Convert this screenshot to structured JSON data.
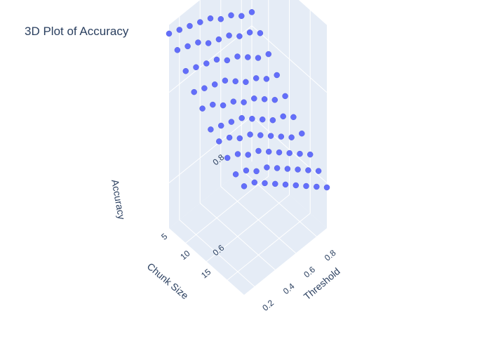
{
  "chart_data": {
    "type": "scatter",
    "title": "3D Plot of Accuracy",
    "x_axis": {
      "label": "Threshold",
      "range": [
        0.1,
        0.9
      ],
      "ticks": [
        "0.2",
        "0.4",
        "0.6",
        "0.8"
      ]
    },
    "y_axis": {
      "label": "Chunk Size",
      "range": [
        1,
        19
      ],
      "ticks": [
        "5",
        "10",
        "15"
      ]
    },
    "z_axis": {
      "label": "Accuracy",
      "range": [
        0.5,
        0.95
      ],
      "ticks": [
        "0.6",
        "0.8"
      ]
    },
    "grid": true,
    "marker_color": "#636efa",
    "points": [
      {
        "x": 0.1,
        "y": 1,
        "z": 0.93
      },
      {
        "x": 0.1,
        "y": 3,
        "z": 0.91
      },
      {
        "x": 0.1,
        "y": 5,
        "z": 0.88
      },
      {
        "x": 0.1,
        "y": 7,
        "z": 0.85
      },
      {
        "x": 0.1,
        "y": 9,
        "z": 0.83
      },
      {
        "x": 0.1,
        "y": 11,
        "z": 0.8
      },
      {
        "x": 0.1,
        "y": 13,
        "z": 0.79
      },
      {
        "x": 0.1,
        "y": 15,
        "z": 0.77
      },
      {
        "x": 0.1,
        "y": 17,
        "z": 0.75
      },
      {
        "x": 0.1,
        "y": 19,
        "z": 0.74
      },
      {
        "x": 0.2,
        "y": 1,
        "z": 0.92
      },
      {
        "x": 0.2,
        "y": 3,
        "z": 0.9
      },
      {
        "x": 0.2,
        "y": 5,
        "z": 0.87
      },
      {
        "x": 0.2,
        "y": 7,
        "z": 0.84
      },
      {
        "x": 0.2,
        "y": 9,
        "z": 0.82
      },
      {
        "x": 0.2,
        "y": 11,
        "z": 0.79
      },
      {
        "x": 0.2,
        "y": 13,
        "z": 0.78
      },
      {
        "x": 0.2,
        "y": 15,
        "z": 0.76
      },
      {
        "x": 0.2,
        "y": 17,
        "z": 0.74
      },
      {
        "x": 0.2,
        "y": 19,
        "z": 0.73
      },
      {
        "x": 0.3,
        "y": 1,
        "z": 0.91
      },
      {
        "x": 0.3,
        "y": 3,
        "z": 0.89
      },
      {
        "x": 0.3,
        "y": 5,
        "z": 0.86
      },
      {
        "x": 0.3,
        "y": 7,
        "z": 0.83
      },
      {
        "x": 0.3,
        "y": 9,
        "z": 0.8
      },
      {
        "x": 0.3,
        "y": 11,
        "z": 0.78
      },
      {
        "x": 0.3,
        "y": 13,
        "z": 0.76
      },
      {
        "x": 0.3,
        "y": 15,
        "z": 0.74
      },
      {
        "x": 0.3,
        "y": 17,
        "z": 0.72
      },
      {
        "x": 0.3,
        "y": 19,
        "z": 0.71
      },
      {
        "x": 0.4,
        "y": 1,
        "z": 0.9
      },
      {
        "x": 0.4,
        "y": 3,
        "z": 0.87
      },
      {
        "x": 0.4,
        "y": 5,
        "z": 0.85
      },
      {
        "x": 0.4,
        "y": 7,
        "z": 0.82
      },
      {
        "x": 0.4,
        "y": 9,
        "z": 0.79
      },
      {
        "x": 0.4,
        "y": 11,
        "z": 0.77
      },
      {
        "x": 0.4,
        "y": 13,
        "z": 0.75
      },
      {
        "x": 0.4,
        "y": 15,
        "z": 0.73
      },
      {
        "x": 0.4,
        "y": 17,
        "z": 0.71
      },
      {
        "x": 0.4,
        "y": 19,
        "z": 0.69
      },
      {
        "x": 0.5,
        "y": 1,
        "z": 0.89
      },
      {
        "x": 0.5,
        "y": 3,
        "z": 0.86
      },
      {
        "x": 0.5,
        "y": 5,
        "z": 0.83
      },
      {
        "x": 0.5,
        "y": 7,
        "z": 0.8
      },
      {
        "x": 0.5,
        "y": 9,
        "z": 0.77
      },
      {
        "x": 0.5,
        "y": 11,
        "z": 0.75
      },
      {
        "x": 0.5,
        "y": 13,
        "z": 0.73
      },
      {
        "x": 0.5,
        "y": 15,
        "z": 0.71
      },
      {
        "x": 0.5,
        "y": 17,
        "z": 0.69
      },
      {
        "x": 0.5,
        "y": 19,
        "z": 0.67
      },
      {
        "x": 0.6,
        "y": 1,
        "z": 0.87
      },
      {
        "x": 0.6,
        "y": 3,
        "z": 0.85
      },
      {
        "x": 0.6,
        "y": 5,
        "z": 0.82
      },
      {
        "x": 0.6,
        "y": 7,
        "z": 0.78
      },
      {
        "x": 0.6,
        "y": 9,
        "z": 0.76
      },
      {
        "x": 0.6,
        "y": 11,
        "z": 0.73
      },
      {
        "x": 0.6,
        "y": 13,
        "z": 0.71
      },
      {
        "x": 0.6,
        "y": 15,
        "z": 0.69
      },
      {
        "x": 0.6,
        "y": 17,
        "z": 0.67
      },
      {
        "x": 0.6,
        "y": 19,
        "z": 0.65
      },
      {
        "x": 0.7,
        "y": 1,
        "z": 0.86
      },
      {
        "x": 0.7,
        "y": 3,
        "z": 0.83
      },
      {
        "x": 0.7,
        "y": 5,
        "z": 0.8
      },
      {
        "x": 0.7,
        "y": 7,
        "z": 0.77
      },
      {
        "x": 0.7,
        "y": 9,
        "z": 0.74
      },
      {
        "x": 0.7,
        "y": 11,
        "z": 0.71
      },
      {
        "x": 0.7,
        "y": 13,
        "z": 0.69
      },
      {
        "x": 0.7,
        "y": 15,
        "z": 0.67
      },
      {
        "x": 0.7,
        "y": 17,
        "z": 0.65
      },
      {
        "x": 0.7,
        "y": 19,
        "z": 0.63
      },
      {
        "x": 0.8,
        "y": 1,
        "z": 0.84
      },
      {
        "x": 0.8,
        "y": 3,
        "z": 0.82
      },
      {
        "x": 0.8,
        "y": 5,
        "z": 0.78
      },
      {
        "x": 0.8,
        "y": 7,
        "z": 0.75
      },
      {
        "x": 0.8,
        "y": 9,
        "z": 0.72
      },
      {
        "x": 0.8,
        "y": 11,
        "z": 0.7
      },
      {
        "x": 0.8,
        "y": 13,
        "z": 0.67
      },
      {
        "x": 0.8,
        "y": 15,
        "z": 0.65
      },
      {
        "x": 0.8,
        "y": 17,
        "z": 0.63
      },
      {
        "x": 0.8,
        "y": 19,
        "z": 0.61
      },
      {
        "x": 0.9,
        "y": 1,
        "z": 0.83
      },
      {
        "x": 0.9,
        "y": 3,
        "z": 0.8
      },
      {
        "x": 0.9,
        "y": 5,
        "z": 0.77
      },
      {
        "x": 0.9,
        "y": 7,
        "z": 0.74
      },
      {
        "x": 0.9,
        "y": 9,
        "z": 0.71
      },
      {
        "x": 0.9,
        "y": 11,
        "z": 0.68
      },
      {
        "x": 0.9,
        "y": 13,
        "z": 0.66
      },
      {
        "x": 0.9,
        "y": 15,
        "z": 0.63
      },
      {
        "x": 0.9,
        "y": 17,
        "z": 0.61
      },
      {
        "x": 0.9,
        "y": 19,
        "z": 0.59
      }
    ]
  }
}
